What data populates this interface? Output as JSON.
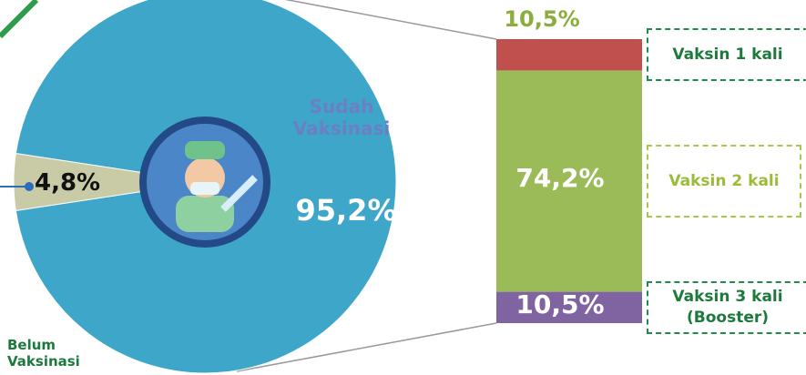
{
  "chart_data": [
    {
      "type": "pie",
      "categories": [
        "Belum Vaksinasi",
        "Sudah Vaksinasi"
      ],
      "values": [
        4.8,
        95.2
      ],
      "value_labels": [
        "4,8%",
        "95,2%"
      ],
      "colors": [
        "#c8cba6",
        "#3ea6c8"
      ]
    },
    {
      "type": "stacked_bar",
      "series": [
        {
          "name": "Vaksin 1 kali",
          "color": "#c0504d",
          "values": [
            10.5
          ],
          "value_labels": [
            "10,5%"
          ]
        },
        {
          "name": "Vaksin 2 kali",
          "color": "#9bbb59",
          "values": [
            74.2
          ],
          "value_labels": [
            "74,2%"
          ]
        },
        {
          "name": "Vaksin 3 kali (Booster)",
          "color": "#8064a2",
          "values": [
            10.5
          ],
          "value_labels": [
            "10,5%"
          ]
        }
      ]
    }
  ]
}
